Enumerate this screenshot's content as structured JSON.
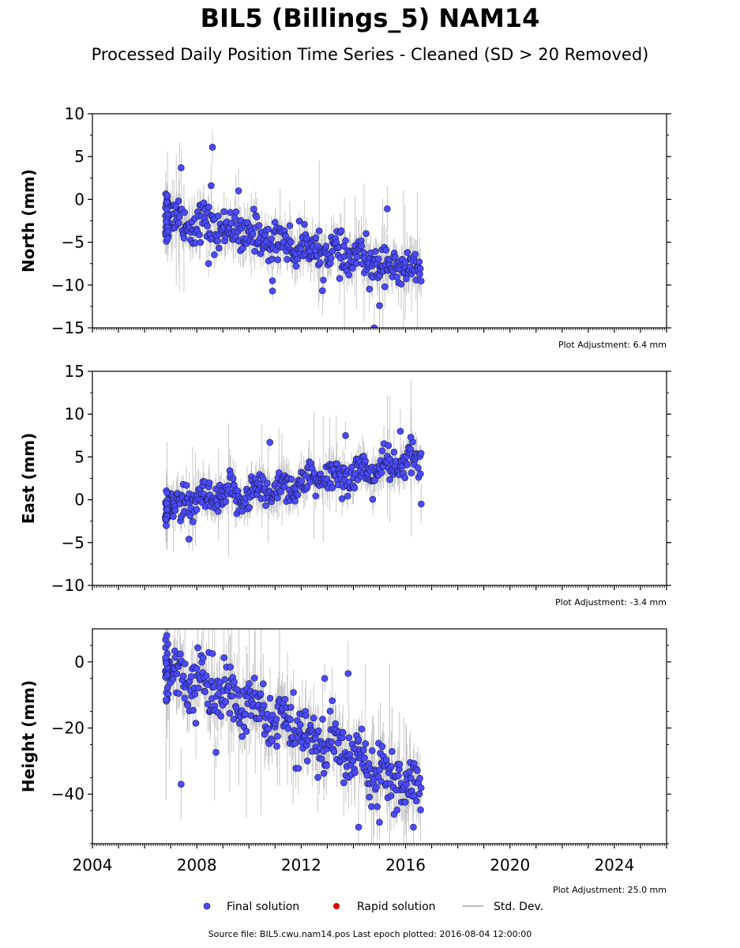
{
  "title": "BIL5 (Billings_5) NAM14",
  "subtitle": "Processed Daily Position Time Series - Cleaned (SD > 20 Removed)",
  "footer": "Source file: BIL5.cwu.nam14.pos  Last epoch plotted: 2016-08-04 12:00:00",
  "legend": {
    "final": "Final solution",
    "rapid": "Rapid solution",
    "sd": "Std. Dev."
  },
  "colors": {
    "final": "#4a4aff",
    "rapid": "#e00000",
    "sd": "#bbbbbb"
  },
  "chart_data": [
    {
      "type": "scatter",
      "ylabel": "North (mm)",
      "xlim": [
        2004,
        2026
      ],
      "ylim": [
        -15,
        10
      ],
      "yticks": [
        10,
        5,
        0,
        -5,
        -10,
        -15
      ],
      "xticks": [
        2004,
        2008,
        2012,
        2016,
        2020,
        2024
      ],
      "adjustment": "Plot Adjustment: 6.4 mm",
      "trend": [
        [
          2006.8,
          -2.0
        ],
        [
          2016.6,
          -8.6
        ]
      ],
      "scatter_sd": 1.5,
      "x_range": [
        2006.8,
        2016.6
      ],
      "outliers": [
        [
          2007.4,
          3.7
        ],
        [
          2008.6,
          6.1
        ],
        [
          2008.55,
          1.6
        ],
        [
          2009.6,
          1.0
        ],
        [
          2010.9,
          -9.5
        ],
        [
          2010.9,
          -10.7
        ],
        [
          2014.8,
          -15.0
        ],
        [
          2015.3,
          -1.1
        ],
        [
          2015.0,
          -12.4
        ],
        [
          2008.45,
          -7.5
        ]
      ]
    },
    {
      "type": "scatter",
      "ylabel": "East (mm)",
      "xlim": [
        2004,
        2026
      ],
      "ylim": [
        -10,
        15
      ],
      "yticks": [
        15,
        10,
        5,
        0,
        -5,
        -10
      ],
      "xticks": [
        2004,
        2008,
        2012,
        2016,
        2020,
        2024
      ],
      "adjustment": "Plot Adjustment: -3.4 mm",
      "trend": [
        [
          2006.8,
          -1.0
        ],
        [
          2016.6,
          4.5
        ]
      ],
      "scatter_sd": 1.3,
      "x_range": [
        2006.8,
        2016.6
      ],
      "outliers": [
        [
          2007.7,
          -4.6
        ],
        [
          2010.8,
          6.7
        ],
        [
          2015.8,
          8.0
        ],
        [
          2016.6,
          -0.5
        ],
        [
          2013.7,
          7.5
        ],
        [
          2016.2,
          7.3
        ]
      ]
    },
    {
      "type": "scatter",
      "ylabel": "Height (mm)",
      "xlim": [
        2004,
        2026
      ],
      "ylim": [
        -55,
        10
      ],
      "yticks": [
        0,
        -20,
        -40
      ],
      "xticks": [
        2004,
        2008,
        2012,
        2016,
        2020,
        2024
      ],
      "adjustment": "Plot Adjustment: 25.0 mm",
      "trend": [
        [
          2006.8,
          -2.0
        ],
        [
          2016.6,
          -38.0
        ]
      ],
      "scatter_sd": 5.5,
      "x_range": [
        2006.8,
        2016.6
      ],
      "outliers": [
        [
          2006.85,
          8.0
        ],
        [
          2008.6,
          2.5
        ],
        [
          2013.8,
          -3.5
        ],
        [
          2012.9,
          -5.0
        ],
        [
          2007.4,
          -37.0
        ],
        [
          2014.2,
          -50.0
        ],
        [
          2015.0,
          -48.5
        ],
        [
          2016.3,
          -50.0
        ]
      ]
    }
  ]
}
